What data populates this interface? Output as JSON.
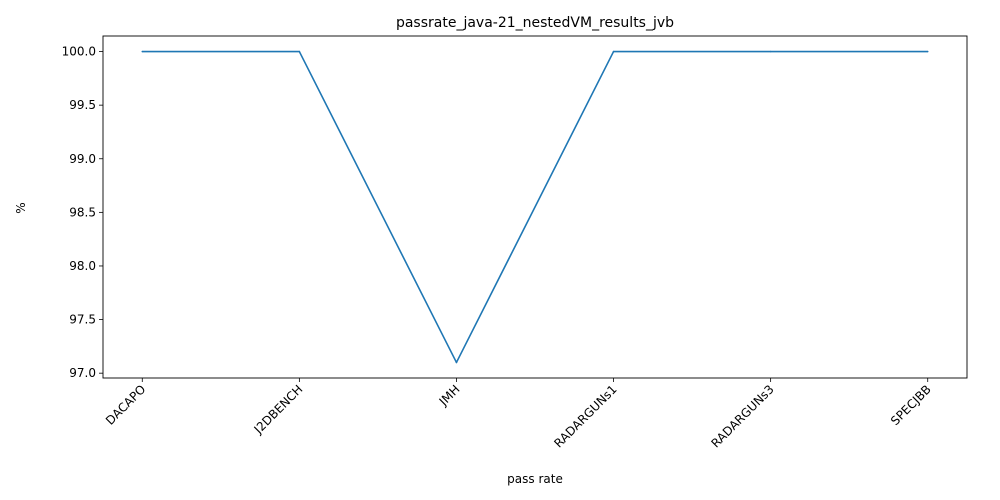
{
  "chart_data": {
    "type": "line",
    "title": "passrate_java-21_nestedVM_results_jvb",
    "xlabel": "pass rate",
    "ylabel": "%",
    "categories": [
      "DACAPO",
      "J2DBENCH",
      "JMH",
      "RADARGUNs1",
      "RADARGUNs3",
      "SPECJBB"
    ],
    "series": [
      {
        "values": [
          100.0,
          100.0,
          97.1,
          100.0,
          100.0,
          100.0
        ],
        "color": "#1f77b4"
      }
    ],
    "yticks": [
      "97.0",
      "97.5",
      "98.0",
      "98.5",
      "99.0",
      "99.5",
      "100.0"
    ],
    "ylim": [
      96.955,
      100.145
    ],
    "grid": false,
    "legend": "none"
  }
}
